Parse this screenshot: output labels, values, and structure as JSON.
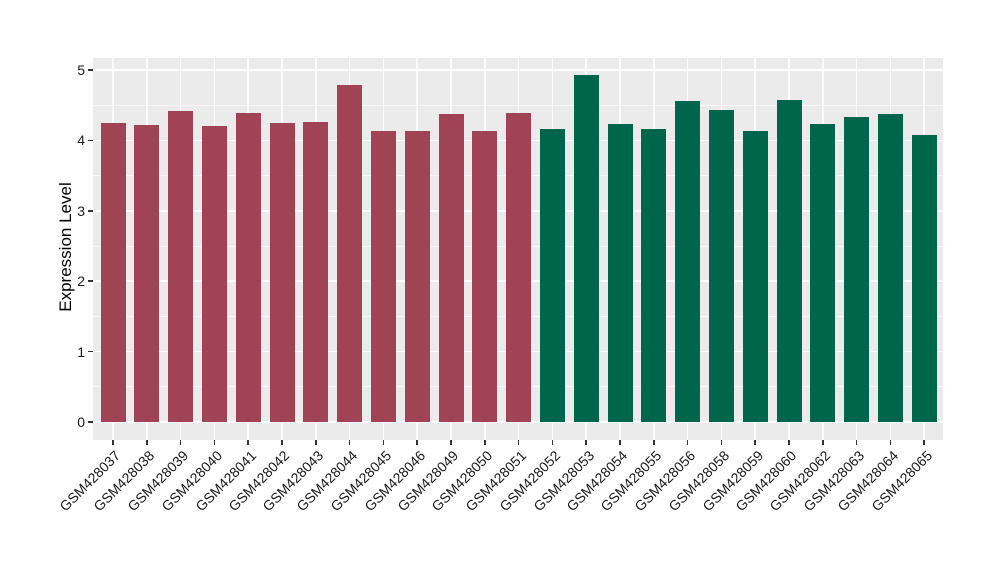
{
  "chart_data": {
    "type": "bar",
    "title": "",
    "xlabel": "",
    "ylabel": "Expression Level",
    "ylim": [
      0,
      5
    ],
    "yticks": [
      "0",
      "1",
      "2",
      "3",
      "4",
      "5"
    ],
    "grid": "on",
    "legend_position": "none",
    "panel_background": "#EBEBEB",
    "gridline_color": "#FFFFFF",
    "tick_mark_color": "#333333",
    "axis_text_color": "#1A1A1A",
    "group_colors": [
      "#A04354",
      "#00664B"
    ],
    "categories": [
      "GSM428037",
      "GSM428038",
      "GSM428039",
      "GSM428040",
      "GSM428041",
      "GSM428042",
      "GSM428043",
      "GSM428044",
      "GSM428045",
      "GSM428046",
      "GSM428049",
      "GSM428050",
      "GSM428051",
      "GSM428052",
      "GSM428053",
      "GSM428054",
      "GSM428055",
      "GSM428056",
      "GSM428058",
      "GSM428059",
      "GSM428060",
      "GSM428062",
      "GSM428063",
      "GSM428064",
      "GSM428065"
    ],
    "values": [
      4.25,
      4.22,
      4.42,
      4.21,
      4.39,
      4.25,
      4.26,
      4.78,
      4.13,
      4.13,
      4.37,
      4.14,
      4.39,
      4.16,
      4.93,
      4.23,
      4.16,
      4.56,
      4.43,
      4.14,
      4.57,
      4.24,
      4.33,
      4.37,
      4.07
    ],
    "bar_groups": [
      0,
      0,
      0,
      0,
      0,
      0,
      0,
      0,
      0,
      0,
      0,
      0,
      0,
      1,
      1,
      1,
      1,
      1,
      1,
      1,
      1,
      1,
      1,
      1,
      1
    ]
  }
}
